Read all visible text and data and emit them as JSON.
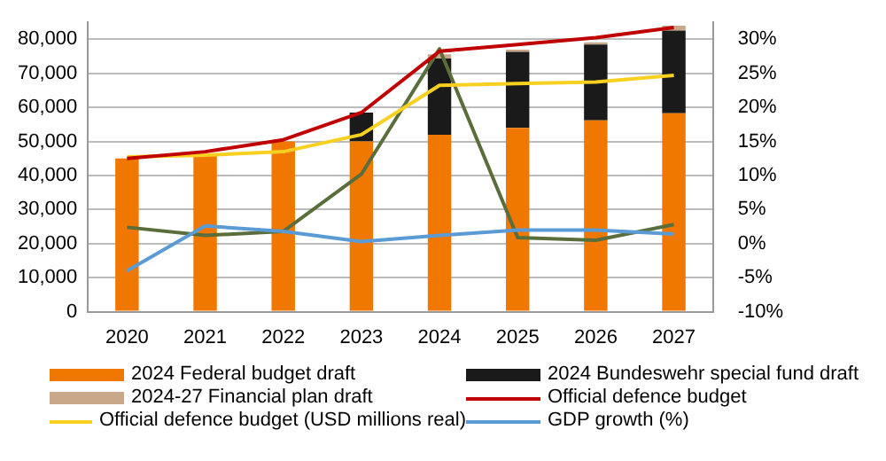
{
  "chart_data": {
    "type": "bar",
    "stacked": true,
    "categories": [
      "2020",
      "2021",
      "2022",
      "2023",
      "2024",
      "2025",
      "2026",
      "2027"
    ],
    "ylim": [
      0,
      85000
    ],
    "yticks": [
      {
        "value": 0,
        "label": "0"
      },
      {
        "value": 10000,
        "label": "10,000"
      },
      {
        "value": 20000,
        "label": "20,000"
      },
      {
        "value": 30000,
        "label": "30,000"
      },
      {
        "value": 40000,
        "label": "40,000"
      },
      {
        "value": 50000,
        "label": "50,000"
      },
      {
        "value": 60000,
        "label": "60,000"
      },
      {
        "value": 70000,
        "label": "70,000"
      },
      {
        "value": 80000,
        "label": "80,000"
      }
    ],
    "y2lim": [
      -10,
      32.5
    ],
    "y2ticks": [
      {
        "value": -10,
        "label": "-10%"
      },
      {
        "value": -5,
        "label": "-5%"
      },
      {
        "value": 0,
        "label": "0%"
      },
      {
        "value": 5,
        "label": "5%"
      },
      {
        "value": 10,
        "label": "10%"
      },
      {
        "value": 15,
        "label": "15%"
      },
      {
        "value": 20,
        "label": "20%"
      },
      {
        "value": 25,
        "label": "25%"
      },
      {
        "value": 30,
        "label": "30%"
      }
    ],
    "grid": "y",
    "legend": "bottom",
    "marker": "none",
    "series": [
      {
        "name": "2024 Federal budget draft",
        "color": "#f07800",
        "values": [
          45000,
          46000,
          50000,
          50000,
          52000,
          54000,
          56200,
          58300
        ]
      },
      {
        "name": "2024 Bundeswehr special fund draft",
        "color": "#1a1a1a",
        "values": [
          null,
          null,
          null,
          8500,
          22400,
          22300,
          22300,
          24300
        ]
      },
      {
        "name": "2024-27 Financial plan draft",
        "color": "#c8a888",
        "values": [
          null,
          null,
          null,
          null,
          1200,
          700,
          600,
          1400
        ]
      },
      {
        "name": "Official defence budget",
        "type": "line",
        "color": "#c00000",
        "values": [
          45000,
          47000,
          50500,
          58500,
          76500,
          78500,
          80500,
          83500
        ]
      },
      {
        "name": "Official defence budget (USD millions real)",
        "type": "line",
        "color": "#f8d020",
        "values": [
          45500,
          46000,
          47000,
          52000,
          66500,
          67000,
          67500,
          69400
        ]
      },
      {
        "name": "GDP growth (%)",
        "type": "line",
        "axis": "y2",
        "color": "#5b9bd5",
        "values": [
          -4,
          2.6,
          1.8,
          0.3,
          1.2,
          2,
          2,
          1.4
        ]
      },
      {
        "type": "line",
        "axis": "y2",
        "color": "#5a6e3c",
        "values": [
          2.4,
          1.2,
          1.8,
          10.2,
          28.6,
          0.9,
          0.5,
          2.8
        ]
      }
    ]
  }
}
